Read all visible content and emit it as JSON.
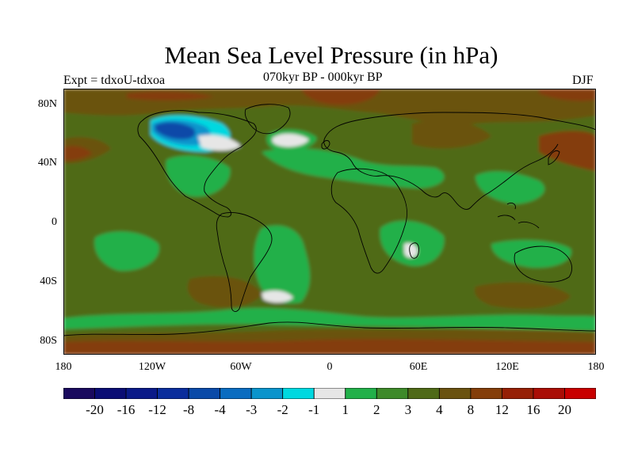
{
  "title": "Mean Sea Level Pressure (in hPa)",
  "subtitle": "070kyr BP - 000kyr BP",
  "experiment_label": "Expt = tdxoU-tdxoa",
  "season": "DJF",
  "map": {
    "projection": "equirectangular",
    "lon_range": [
      -180,
      180
    ],
    "lat_range": [
      -90,
      90
    ],
    "x_ticks": [
      "180",
      "120W",
      "60W",
      "0",
      "60E",
      "120E",
      "180"
    ],
    "y_ticks": [
      "80N",
      "40N",
      "0",
      "40S",
      "80S"
    ],
    "background_class": "3 to 4",
    "notable_regions": [
      {
        "name": "North American ice sheet low",
        "class": "< -20 to -4"
      },
      {
        "name": "North Atlantic low",
        "class": "-1 to 1"
      },
      {
        "name": "Southern Indian Ocean",
        "class": "-1 to 1"
      },
      {
        "name": "South Atlantic",
        "class": "-1 to 1"
      },
      {
        "name": "Arctic / Eurasia high",
        "class": "8 to 16"
      },
      {
        "name": "Southern Ocean ring",
        "class": "1 to 3"
      },
      {
        "name": "Antarctic high",
        "class": "8 to 12"
      }
    ]
  },
  "colorbar": {
    "labels": [
      "-20",
      "-16",
      "-12",
      "-8",
      "-4",
      "-3",
      "-2",
      "-1",
      "1",
      "2",
      "3",
      "4",
      "8",
      "12",
      "16",
      "20"
    ],
    "colors": [
      "#1a0a5e",
      "#0a0d74",
      "#0a1a88",
      "#0a2d9c",
      "#0a4aa8",
      "#0a6cc0",
      "#0a94cc",
      "#00d8e0",
      "#e6e6e6",
      "#22b04a",
      "#3e8a2a",
      "#4f6a18",
      "#6a5210",
      "#843e0a",
      "#962006",
      "#aa0e06",
      "#c80000"
    ]
  },
  "chart_data": {
    "type": "heatmap",
    "title": "Mean Sea Level Pressure (in hPa)",
    "subtitle": "070kyr BP - 000kyr BP",
    "xlabel": "",
    "ylabel": "",
    "xlim": [
      -180,
      180
    ],
    "ylim": [
      -90,
      90
    ],
    "levels": [
      -20,
      -16,
      -12,
      -8,
      -4,
      -3,
      -2,
      -1,
      1,
      2,
      3,
      4,
      8,
      12,
      16,
      20
    ]
  }
}
